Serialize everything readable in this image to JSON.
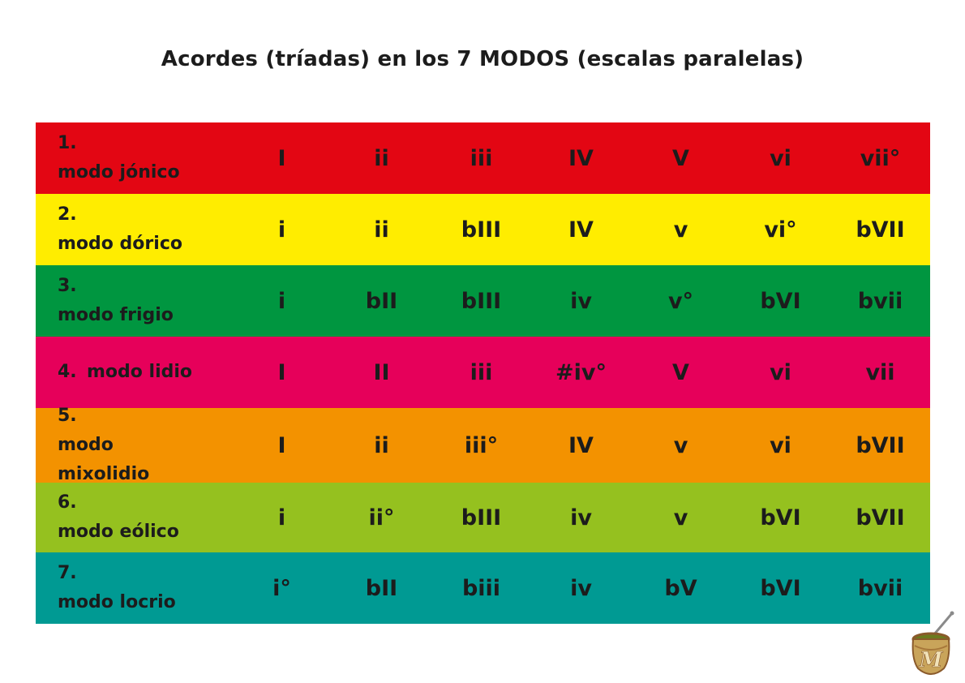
{
  "title": "Acordes (tríadas) en los 7 MODOS (escalas paralelas)",
  "rows": [
    {
      "num": "1.",
      "label": "modo jónico",
      "color": "#e30613",
      "height": 88,
      "chords": [
        "I",
        "ii",
        "iii",
        "IV",
        "V",
        "vi",
        "vii°"
      ]
    },
    {
      "num": "2.",
      "label": "modo dórico",
      "color": "#ffed00",
      "height": 88,
      "chords": [
        "i",
        "ii",
        "bIII",
        "IV",
        "v",
        "vi°",
        "bVII"
      ]
    },
    {
      "num": "3.",
      "label": "modo frigio",
      "color": "#009640",
      "height": 88,
      "chords": [
        "i",
        "bII",
        "bIII",
        "iv",
        "v°",
        "bVI",
        "bvii"
      ]
    },
    {
      "num": "4.",
      "label": "modo lidio",
      "color": "#e6005a",
      "height": 88,
      "chords": [
        "I",
        "II",
        "iii",
        "#iv°",
        "V",
        "vi",
        "vii"
      ]
    },
    {
      "num": "5.",
      "label": "modo mixolidio",
      "color": "#f39200",
      "height": 92,
      "chords": [
        "I",
        "ii",
        "iii°",
        "IV",
        "v",
        "vi",
        "bVII"
      ]
    },
    {
      "num": "6.",
      "label": "modo eólico",
      "color": "#95c11f",
      "height": 86,
      "chords": [
        "i",
        "ii°",
        "bIII",
        "iv",
        "v",
        "bVI",
        "bVII"
      ]
    },
    {
      "num": "7.",
      "label": "modo locrio",
      "color": "#009a93",
      "height": 88,
      "chords": [
        "i°",
        "bII",
        "biii",
        "iv",
        "bV",
        "bVI",
        "bvii"
      ]
    }
  ],
  "logo": {
    "name": "mate-cup-logo",
    "letter": "M"
  }
}
